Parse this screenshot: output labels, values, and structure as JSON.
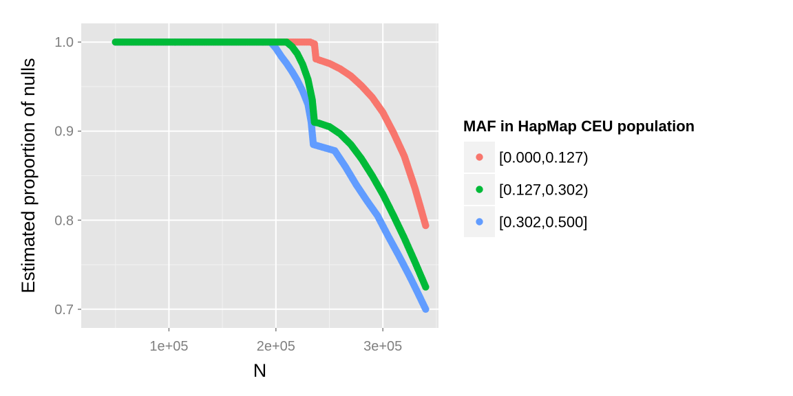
{
  "chart_data": {
    "type": "scatter",
    "title": "",
    "xlabel": "N",
    "ylabel": "Estimated proportion of nulls",
    "xlim": [
      18000,
      352000
    ],
    "ylim": [
      0.679,
      1.021
    ],
    "x_ticks": [
      100000,
      200000,
      300000
    ],
    "x_tick_labels": [
      "1e+05",
      "2e+05",
      "3e+05"
    ],
    "y_ticks": [
      0.7,
      0.8,
      0.9,
      1.0
    ],
    "y_tick_labels": [
      "0.7",
      "0.8",
      "0.9",
      "1.0"
    ],
    "grid": true,
    "legend": {
      "title": "MAF in HapMap CEU population",
      "position": "right"
    },
    "series": [
      {
        "name": "[0.000,0.127)",
        "color": "#F8766D",
        "points": [
          [
            50000,
            1.0
          ],
          [
            60000,
            1.0
          ],
          [
            80000,
            1.0
          ],
          [
            100000,
            1.0
          ],
          [
            120000,
            1.0
          ],
          [
            140000,
            1.0
          ],
          [
            160000,
            1.0
          ],
          [
            180000,
            1.0
          ],
          [
            200000,
            1.0
          ],
          [
            220000,
            1.0
          ],
          [
            232000,
            1.0
          ],
          [
            236000,
            0.998
          ],
          [
            237500,
            0.981
          ],
          [
            240000,
            0.98
          ],
          [
            250000,
            0.976
          ],
          [
            260000,
            0.97
          ],
          [
            270000,
            0.962
          ],
          [
            280000,
            0.951
          ],
          [
            290000,
            0.938
          ],
          [
            300000,
            0.921
          ],
          [
            310000,
            0.898
          ],
          [
            320000,
            0.872
          ],
          [
            330000,
            0.836
          ],
          [
            340000,
            0.794
          ]
        ]
      },
      {
        "name": "[0.127,0.302)",
        "color": "#00BA38",
        "points": [
          [
            50000,
            1.0
          ],
          [
            80000,
            1.0
          ],
          [
            100000,
            1.0
          ],
          [
            120000,
            1.0
          ],
          [
            125000,
            1.0
          ],
          [
            140000,
            1.0
          ],
          [
            145000,
            1.0
          ],
          [
            155000,
            1.0
          ],
          [
            165000,
            1.0
          ],
          [
            182000,
            1.0
          ],
          [
            200000,
            1.0
          ],
          [
            210000,
            1.0
          ],
          [
            215000,
            0.995
          ],
          [
            220000,
            0.987
          ],
          [
            225000,
            0.975
          ],
          [
            230000,
            0.958
          ],
          [
            234000,
            0.935
          ],
          [
            236000,
            0.91
          ],
          [
            240000,
            0.909
          ],
          [
            250000,
            0.905
          ],
          [
            260000,
            0.897
          ],
          [
            270000,
            0.885
          ],
          [
            280000,
            0.869
          ],
          [
            290000,
            0.85
          ],
          [
            300000,
            0.829
          ],
          [
            310000,
            0.805
          ],
          [
            320000,
            0.78
          ],
          [
            330000,
            0.753
          ],
          [
            340000,
            0.725
          ]
        ]
      },
      {
        "name": "[0.302,0.500]",
        "color": "#619CFF",
        "points": [
          [
            50000,
            1.0
          ],
          [
            80000,
            1.0
          ],
          [
            100000,
            1.0
          ],
          [
            120000,
            1.0
          ],
          [
            140000,
            1.0
          ],
          [
            160000,
            1.0
          ],
          [
            180000,
            1.0
          ],
          [
            195000,
            1.0
          ],
          [
            200000,
            0.993
          ],
          [
            205000,
            0.984
          ],
          [
            210000,
            0.976
          ],
          [
            215000,
            0.967
          ],
          [
            220000,
            0.957
          ],
          [
            225000,
            0.945
          ],
          [
            230000,
            0.93
          ],
          [
            233000,
            0.91
          ],
          [
            235000,
            0.885
          ],
          [
            255000,
            0.878
          ],
          [
            265000,
            0.86
          ],
          [
            275000,
            0.84
          ],
          [
            285000,
            0.822
          ],
          [
            295000,
            0.805
          ],
          [
            305000,
            0.782
          ],
          [
            315000,
            0.76
          ],
          [
            325000,
            0.737
          ],
          [
            332000,
            0.72
          ],
          [
            340000,
            0.7
          ]
        ]
      }
    ]
  }
}
